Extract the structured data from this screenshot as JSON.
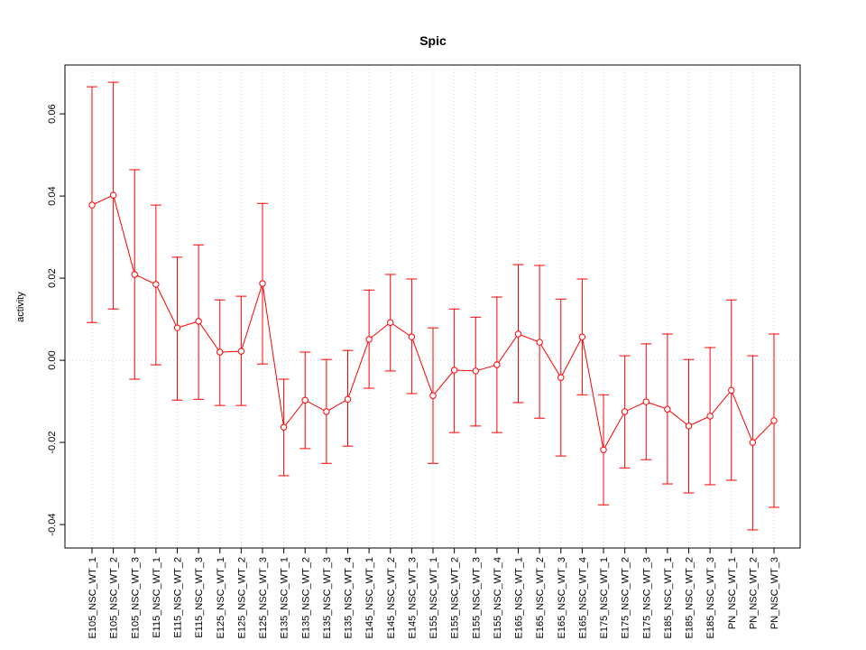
{
  "chart_data": {
    "type": "line",
    "title": "Spic",
    "xlabel": "",
    "ylabel": "activity",
    "ylim": [
      -0.0457,
      0.0719
    ],
    "yticks": [
      -0.04,
      -0.02,
      0.0,
      0.02,
      0.04,
      0.06
    ],
    "ytick_labels": [
      "-0.04",
      "-0.02",
      "0.00",
      "0.02",
      "0.04",
      "0.06"
    ],
    "grid": "dotted vertical at each category, horizontal at 0",
    "color": "#ff0000",
    "categories": [
      "E105_NSC_WT_1",
      "E105_NSC_WT_2",
      "E105_NSC_WT_3",
      "E115_NSC_WT_1",
      "E115_NSC_WT_2",
      "E115_NSC_WT_3",
      "E125_NSC_WT_1",
      "E125_NSC_WT_2",
      "E125_NSC_WT_3",
      "E135_NSC_WT_1",
      "E135_NSC_WT_2",
      "E135_NSC_WT_3",
      "E135_NSC_WT_4",
      "E145_NSC_WT_1",
      "E145_NSC_WT_2",
      "E145_NSC_WT_3",
      "E155_NSC_WT_1",
      "E155_NSC_WT_2",
      "E155_NSC_WT_3",
      "E155_NSC_WT_4",
      "E165_NSC_WT_1",
      "E165_NSC_WT_2",
      "E165_NSC_WT_3",
      "E165_NSC_WT_4",
      "E175_NSC_WT_1",
      "E175_NSC_WT_2",
      "E175_NSC_WT_3",
      "E185_NSC_WT_1",
      "E185_NSC_WT_2",
      "E185_NSC_WT_3",
      "PN_NSC_WT_1",
      "PN_NSC_WT_2",
      "PN_NSC_WT_3"
    ],
    "values": [
      0.0378,
      0.0402,
      0.0209,
      0.0185,
      0.0079,
      0.0095,
      0.002,
      0.0022,
      0.0187,
      -0.0163,
      -0.0097,
      -0.0125,
      -0.0095,
      0.0051,
      0.0092,
      0.0057,
      -0.0086,
      -0.0024,
      -0.0026,
      -0.0011,
      0.0064,
      0.0044,
      -0.0042,
      0.0057,
      -0.0218,
      -0.0125,
      -0.0101,
      -0.0119,
      -0.016,
      -0.0136,
      -0.0073,
      -0.02,
      -0.0147
    ],
    "upper": [
      0.0666,
      0.0677,
      0.0464,
      0.0378,
      0.0251,
      0.0281,
      0.0147,
      0.0156,
      0.0382,
      -0.0046,
      0.002,
      0.0002,
      0.0024,
      0.0171,
      0.0209,
      0.0198,
      0.0079,
      0.0125,
      0.0105,
      0.0154,
      0.0233,
      0.0231,
      0.0149,
      0.0198,
      -0.0084,
      0.0011,
      0.004,
      0.0064,
      0.0002,
      0.0031,
      0.0147,
      0.0011,
      0.0064
    ],
    "lower": [
      0.0092,
      0.0125,
      -0.0046,
      -0.0011,
      -0.0097,
      -0.0095,
      -0.011,
      -0.011,
      -0.0009,
      -0.0281,
      -0.0215,
      -0.0251,
      -0.0209,
      -0.0068,
      -0.0026,
      -0.0081,
      -0.0251,
      -0.0176,
      -0.016,
      -0.0176,
      -0.0103,
      -0.0141,
      -0.0233,
      -0.0084,
      -0.0352,
      -0.0262,
      -0.0242,
      -0.0301,
      -0.0323,
      -0.0303,
      -0.0292,
      -0.0413,
      -0.0358
    ]
  }
}
